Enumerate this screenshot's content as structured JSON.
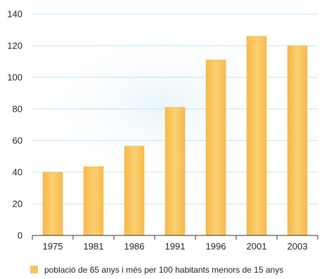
{
  "chart_data": {
    "type": "bar",
    "categories": [
      "1975",
      "1981",
      "1986",
      "1991",
      "1996",
      "2001",
      "2003"
    ],
    "series": [
      {
        "name": "població de 65 anys i més per 100 habitants menors de 15 anys",
        "values": [
          40,
          43.5,
          56.5,
          81,
          111,
          126,
          120
        ]
      }
    ],
    "ylim": [
      0,
      140
    ],
    "yticks": [
      "0",
      "20",
      "40",
      "60",
      "80",
      "100",
      "120",
      "140"
    ],
    "ytick_values": [
      0,
      20,
      40,
      60,
      80,
      100,
      120,
      140
    ],
    "grid": true,
    "legend_position": "bottom",
    "colors": {
      "bar": "#f9c35a",
      "bar_edge": "#f2b03e",
      "grid": "#bfe4f4",
      "axis": "#333333",
      "halo": "#eaf6fb"
    }
  }
}
